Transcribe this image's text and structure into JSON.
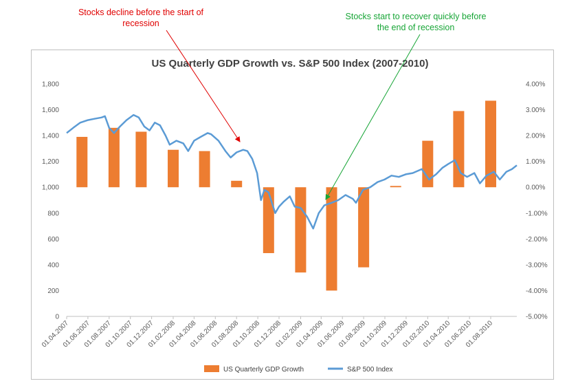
{
  "annotations": {
    "red": {
      "line1": "Stocks decline before the start of",
      "line2": "recession"
    },
    "green": {
      "line1": "Stocks start to recover quickly before",
      "line2": "the end of recession"
    }
  },
  "colors": {
    "gdp_bar": "#ed7d31",
    "sp500_line": "#5b9bd5",
    "annotation_red": "#e00000",
    "annotation_green": "#17a536",
    "grid": "#d9d9d9"
  },
  "chart_data": {
    "type": "bar+line",
    "title": "US Quarterly GDP Growth vs. S&P 500 Index  (2007-2010)",
    "x_range": [
      "2007-04-01",
      "2010-10-15"
    ],
    "x_ticks": [
      "01.04.2007",
      "01.06.2007",
      "01.08.2007",
      "01.10.2007",
      "01.12.2007",
      "01.02.2008",
      "01.04.2008",
      "01.06.2008",
      "01.08.2008",
      "01.10.2008",
      "01.12.2008",
      "01.02.2009",
      "01.04.2009",
      "01.06.2009",
      "01.08.2009",
      "01.10.2009",
      "01.12.2009",
      "01.02.2010",
      "01.04.2010",
      "01.06.2010",
      "01.08.2010"
    ],
    "y_left": {
      "min": 0,
      "max": 1800,
      "ticks": [
        "0",
        "200",
        "400",
        "600",
        "800",
        "1,000",
        "1,200",
        "1,400",
        "1,600",
        "1,800"
      ]
    },
    "y_right": {
      "min": -5,
      "max": 4,
      "ticks": [
        "-5.00%",
        "-4.00%",
        "-3.00%",
        "-2.00%",
        "-1.00%",
        "0.00%",
        "1.00%",
        "2.00%",
        "3.00%",
        "4.00%"
      ]
    },
    "grid": false,
    "legend_position": "bottom",
    "series": [
      {
        "name": "US Quarterly GDP Growth",
        "kind": "bar",
        "axis": "right",
        "unit": "%",
        "points": [
          {
            "date": "2007-05-15",
            "value": 1.95
          },
          {
            "date": "2007-08-15",
            "value": 2.3
          },
          {
            "date": "2007-11-01",
            "value": 2.15
          },
          {
            "date": "2008-02-01",
            "value": 1.45
          },
          {
            "date": "2008-05-01",
            "value": 1.4
          },
          {
            "date": "2008-08-01",
            "value": 0.25
          },
          {
            "date": "2008-11-01",
            "value": -2.55
          },
          {
            "date": "2009-02-01",
            "value": -3.3
          },
          {
            "date": "2009-05-01",
            "value": -4.0
          },
          {
            "date": "2009-08-01",
            "value": -3.1
          },
          {
            "date": "2009-11-01",
            "value": 0.05
          },
          {
            "date": "2010-02-01",
            "value": 1.8
          },
          {
            "date": "2010-05-01",
            "value": 2.95
          },
          {
            "date": "2010-08-01",
            "value": 3.35
          }
        ]
      },
      {
        "name": "S&P 500 Index",
        "kind": "line",
        "axis": "left",
        "points": [
          [
            "2007-04-01",
            1420
          ],
          [
            "2007-04-20",
            1460
          ],
          [
            "2007-05-10",
            1500
          ],
          [
            "2007-06-01",
            1520
          ],
          [
            "2007-06-20",
            1530
          ],
          [
            "2007-07-10",
            1540
          ],
          [
            "2007-07-20",
            1550
          ],
          [
            "2007-08-01",
            1460
          ],
          [
            "2007-08-15",
            1420
          ],
          [
            "2007-09-01",
            1470
          ],
          [
            "2007-09-20",
            1520
          ],
          [
            "2007-10-10",
            1560
          ],
          [
            "2007-10-25",
            1540
          ],
          [
            "2007-11-10",
            1470
          ],
          [
            "2007-11-25",
            1440
          ],
          [
            "2007-12-10",
            1500
          ],
          [
            "2007-12-25",
            1480
          ],
          [
            "2008-01-10",
            1400
          ],
          [
            "2008-01-22",
            1330
          ],
          [
            "2008-02-10",
            1360
          ],
          [
            "2008-03-01",
            1340
          ],
          [
            "2008-03-15",
            1280
          ],
          [
            "2008-04-01",
            1360
          ],
          [
            "2008-04-20",
            1390
          ],
          [
            "2008-05-10",
            1420
          ],
          [
            "2008-05-20",
            1410
          ],
          [
            "2008-06-10",
            1360
          ],
          [
            "2008-06-30",
            1280
          ],
          [
            "2008-07-15",
            1230
          ],
          [
            "2008-08-01",
            1270
          ],
          [
            "2008-08-20",
            1290
          ],
          [
            "2008-09-01",
            1280
          ],
          [
            "2008-09-15",
            1220
          ],
          [
            "2008-09-29",
            1110
          ],
          [
            "2008-10-10",
            900
          ],
          [
            "2008-10-20",
            980
          ],
          [
            "2008-11-01",
            960
          ],
          [
            "2008-11-20",
            800
          ],
          [
            "2008-12-01",
            850
          ],
          [
            "2008-12-15",
            890
          ],
          [
            "2009-01-01",
            930
          ],
          [
            "2009-01-15",
            850
          ],
          [
            "2009-02-01",
            840
          ],
          [
            "2009-02-20",
            770
          ],
          [
            "2009-03-09",
            680
          ],
          [
            "2009-03-25",
            800
          ],
          [
            "2009-04-10",
            860
          ],
          [
            "2009-05-01",
            880
          ],
          [
            "2009-05-20",
            900
          ],
          [
            "2009-06-10",
            940
          ],
          [
            "2009-07-01",
            910
          ],
          [
            "2009-07-10",
            880
          ],
          [
            "2009-07-30",
            980
          ],
          [
            "2009-08-20",
            1000
          ],
          [
            "2009-09-10",
            1040
          ],
          [
            "2009-09-30",
            1060
          ],
          [
            "2009-10-20",
            1090
          ],
          [
            "2009-11-10",
            1080
          ],
          [
            "2009-11-30",
            1100
          ],
          [
            "2009-12-20",
            1110
          ],
          [
            "2010-01-15",
            1140
          ],
          [
            "2010-02-05",
            1060
          ],
          [
            "2010-02-25",
            1100
          ],
          [
            "2010-03-15",
            1150
          ],
          [
            "2010-04-01",
            1180
          ],
          [
            "2010-04-20",
            1210
          ],
          [
            "2010-05-07",
            1110
          ],
          [
            "2010-05-25",
            1080
          ],
          [
            "2010-06-15",
            1110
          ],
          [
            "2010-07-01",
            1030
          ],
          [
            "2010-07-20",
            1090
          ],
          [
            "2010-08-10",
            1120
          ],
          [
            "2010-08-27",
            1060
          ],
          [
            "2010-09-15",
            1120
          ],
          [
            "2010-10-01",
            1140
          ],
          [
            "2010-10-15",
            1170
          ]
        ]
      }
    ]
  }
}
